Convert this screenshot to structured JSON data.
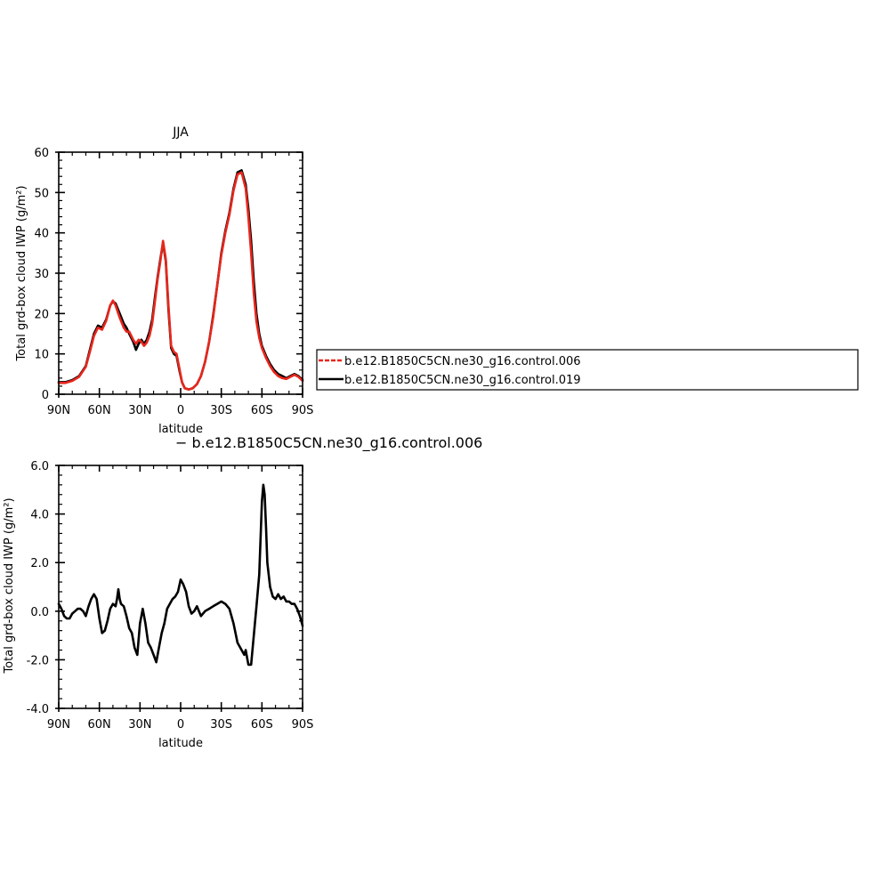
{
  "chart_data": [
    {
      "type": "line",
      "title": "JJA",
      "xlabel": "latitude",
      "ylabel": "Total grd-box cloud IWP (g/m²)",
      "xlim": [
        90,
        -90
      ],
      "ylim": [
        0,
        60
      ],
      "x_ticks": [
        90,
        60,
        30,
        0,
        -30,
        -60,
        -90
      ],
      "x_tick_labels": [
        "90N",
        "60N",
        "30N",
        "0",
        "30S",
        "60S",
        "90S"
      ],
      "y_ticks": [
        0,
        10,
        20,
        30,
        40,
        50,
        60
      ],
      "y_tick_labels": [
        "0",
        "10",
        "20",
        "30",
        "40",
        "50",
        "60"
      ],
      "legend": {
        "placement": "right",
        "entries": [
          {
            "label": "b.e12.B1850C5CN.ne30_g16.control.006",
            "color": "#e8261c",
            "dash": true
          },
          {
            "label": "b.e12.B1850C5CN.ne30_g16.control.019",
            "color": "#000000",
            "dash": false
          }
        ]
      },
      "series": [
        {
          "color": "#000000",
          "x": [
            90,
            85,
            80,
            75,
            70,
            67,
            64,
            61,
            58,
            55,
            52,
            50,
            48,
            45,
            42,
            40,
            38,
            35,
            33,
            31,
            29,
            27,
            25,
            23,
            21,
            19,
            17,
            15,
            13,
            11,
            9,
            7,
            5,
            3,
            1,
            -1,
            -3,
            -6,
            -9,
            -12,
            -15,
            -18,
            -21,
            -24,
            -27,
            -30,
            -33,
            -36,
            -39,
            -42,
            -45,
            -48,
            -50,
            -52,
            -54,
            -56,
            -58,
            -60,
            -63,
            -66,
            -69,
            -72,
            -75,
            -78,
            -81,
            -84,
            -87,
            -90
          ],
          "y": [
            3.0,
            3.0,
            3.5,
            4.5,
            7.0,
            11.0,
            15.0,
            17.0,
            16.5,
            18.5,
            22.0,
            23.0,
            22.5,
            20.0,
            17.5,
            16.5,
            15.0,
            13.0,
            11.0,
            12.5,
            13.5,
            12.5,
            13.5,
            15.5,
            18.5,
            24.0,
            29.0,
            33.5,
            37.5,
            33.0,
            21.0,
            11.5,
            10.0,
            9.5,
            6.0,
            3.0,
            1.5,
            1.2,
            1.5,
            2.5,
            4.5,
            8.0,
            13.0,
            19.5,
            27.0,
            35.0,
            40.5,
            45.0,
            51.0,
            55.0,
            55.5,
            52.0,
            46.0,
            38.0,
            28.0,
            20.0,
            15.0,
            12.0,
            9.5,
            7.5,
            6.0,
            5.0,
            4.5,
            4.0,
            4.5,
            5.0,
            4.5,
            3.5
          ]
        },
        {
          "color": "#e8261c",
          "x": [
            90,
            85,
            80,
            75,
            70,
            67,
            64,
            61,
            58,
            55,
            52,
            50,
            48,
            45,
            42,
            40,
            38,
            35,
            33,
            31,
            29,
            27,
            25,
            23,
            21,
            19,
            17,
            15,
            13,
            11,
            9,
            7,
            5,
            3,
            1,
            -1,
            -3,
            -6,
            -9,
            -12,
            -15,
            -18,
            -21,
            -24,
            -27,
            -30,
            -33,
            -36,
            -39,
            -42,
            -45,
            -48,
            -50,
            -52,
            -54,
            -56,
            -58,
            -60,
            -63,
            -66,
            -69,
            -72,
            -75,
            -78,
            -81,
            -84,
            -87,
            -90
          ],
          "y": [
            2.8,
            2.8,
            3.3,
            4.3,
            6.8,
            10.5,
            14.5,
            16.5,
            16.0,
            18.2,
            22.0,
            23.2,
            22.0,
            19.0,
            16.5,
            15.5,
            15.5,
            13.5,
            12.5,
            13.5,
            13.0,
            12.0,
            12.8,
            14.5,
            17.5,
            23.0,
            28.5,
            33.0,
            38.0,
            33.5,
            22.0,
            12.0,
            10.5,
            10.0,
            6.5,
            3.0,
            1.5,
            1.2,
            1.5,
            2.5,
            4.5,
            8.0,
            13.0,
            19.0,
            27.0,
            34.5,
            40.0,
            44.5,
            50.5,
            54.5,
            55.0,
            51.0,
            44.0,
            35.0,
            25.0,
            18.0,
            14.0,
            11.5,
            9.0,
            7.0,
            5.5,
            4.5,
            4.0,
            3.8,
            4.3,
            4.8,
            4.3,
            3.3
          ]
        }
      ]
    },
    {
      "type": "line",
      "title": "− b.e12.B1850C5CN.ne30_g16.control.006",
      "xlabel": "latitude",
      "ylabel": "Total grd-box cloud IWP (g/m²)",
      "xlim": [
        90,
        -90
      ],
      "ylim": [
        -4,
        6
      ],
      "x_ticks": [
        90,
        60,
        30,
        0,
        -30,
        -60,
        -90
      ],
      "x_tick_labels": [
        "90N",
        "60N",
        "30N",
        "0",
        "30S",
        "60S",
        "90S"
      ],
      "y_ticks": [
        -4,
        -2,
        0,
        2,
        4,
        6
      ],
      "y_tick_labels": [
        "-4.0",
        "-2.0",
        "0.0",
        "2.0",
        "4.0",
        "6.0"
      ],
      "series": [
        {
          "color": "#000000",
          "x": [
            90,
            88,
            86,
            84,
            82,
            80,
            78,
            76,
            74,
            72,
            70,
            68,
            66,
            64,
            62,
            60,
            58,
            56,
            54,
            52,
            50,
            48,
            47,
            46,
            45,
            44,
            42,
            40,
            38,
            36,
            34,
            32,
            30,
            29,
            28,
            26,
            24,
            22,
            20,
            18,
            16,
            14,
            12,
            10,
            8,
            6,
            4,
            2,
            0,
            -2,
            -4,
            -6,
            -8,
            -10,
            -12,
            -15,
            -18,
            -21,
            -24,
            -27,
            -30,
            -33,
            -36,
            -39,
            -42,
            -45,
            -47,
            -48,
            -50,
            -52,
            -54,
            -56,
            -58,
            -59,
            -60,
            -61,
            -62,
            -63,
            -64,
            -66,
            -68,
            -70,
            -72,
            -74,
            -76,
            -78,
            -80,
            -82,
            -84,
            -86,
            -88,
            -90
          ],
          "y": [
            0.3,
            0.1,
            -0.2,
            -0.3,
            -0.3,
            -0.1,
            0.0,
            0.1,
            0.1,
            0.0,
            -0.2,
            0.2,
            0.5,
            0.7,
            0.5,
            -0.3,
            -0.9,
            -0.8,
            -0.4,
            0.1,
            0.3,
            0.2,
            0.5,
            0.9,
            0.5,
            0.3,
            0.2,
            -0.2,
            -0.7,
            -0.9,
            -1.5,
            -1.8,
            -0.5,
            -0.2,
            0.1,
            -0.5,
            -1.3,
            -1.5,
            -1.8,
            -2.1,
            -1.5,
            -0.9,
            -0.5,
            0.1,
            0.3,
            0.5,
            0.6,
            0.8,
            1.3,
            1.1,
            0.8,
            0.2,
            -0.1,
            0.0,
            0.2,
            -0.2,
            0.0,
            0.1,
            0.2,
            0.3,
            0.4,
            0.3,
            0.1,
            -0.5,
            -1.3,
            -1.6,
            -1.8,
            -1.6,
            -2.2,
            -2.2,
            -1.0,
            0.2,
            1.5,
            3.0,
            4.5,
            5.2,
            4.8,
            3.5,
            2.0,
            1.0,
            0.6,
            0.5,
            0.7,
            0.5,
            0.6,
            0.4,
            0.4,
            0.3,
            0.3,
            0.1,
            -0.2,
            -0.6
          ]
        }
      ]
    }
  ]
}
